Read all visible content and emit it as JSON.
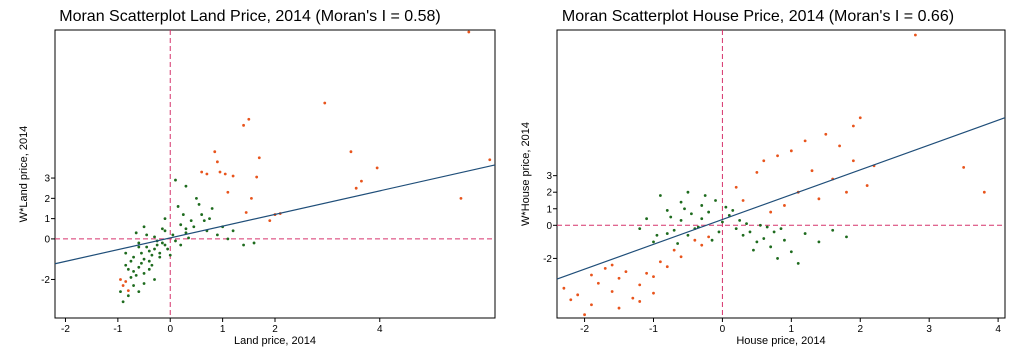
{
  "chart_data": [
    {
      "type": "scatter",
      "title": "Moran Scatterplot Land Price, 2014 (Moran's I = 0.58)",
      "xlabel": "Land price, 2014",
      "ylabel": "W*Land price, 2014",
      "xlim": [
        -2.2,
        6.2
      ],
      "ylim": [
        -3.9,
        10.3
      ],
      "xticks": [
        -2,
        -1,
        0,
        1,
        2,
        4
      ],
      "yticks": [
        3,
        2,
        1,
        0,
        -2
      ],
      "reference_lines": {
        "x": 0,
        "y": 0,
        "color": "#d6336c"
      },
      "fit_line": {
        "slope": 0.58,
        "intercept": 0.05,
        "color": "#1f4e79"
      },
      "grid": false,
      "series": [
        {
          "color": "#e8541c",
          "points": [
            [
              5.7,
              10.2
            ],
            [
              2.95,
              6.7
            ],
            [
              1.5,
              5.9
            ],
            [
              1.4,
              5.6
            ],
            [
              3.45,
              4.3
            ],
            [
              3.95,
              3.5
            ],
            [
              6.1,
              3.9
            ],
            [
              0.85,
              4.3
            ],
            [
              0.9,
              3.8
            ],
            [
              1.7,
              4.0
            ],
            [
              1.05,
              3.2
            ],
            [
              1.2,
              3.1
            ],
            [
              1.65,
              3.05
            ],
            [
              3.65,
              2.85
            ],
            [
              3.55,
              2.5
            ],
            [
              5.55,
              2.0
            ],
            [
              1.55,
              2.0
            ],
            [
              1.45,
              1.3
            ],
            [
              2.0,
              1.2
            ],
            [
              1.9,
              0.9
            ],
            [
              2.1,
              1.25
            ],
            [
              0.95,
              3.3
            ],
            [
              0.7,
              3.2
            ],
            [
              0.6,
              3.3
            ],
            [
              1.1,
              2.3
            ],
            [
              -0.95,
              -2.0
            ],
            [
              -0.9,
              -2.3
            ],
            [
              -0.85,
              -2.1
            ],
            [
              -0.8,
              -2.55
            ]
          ]
        },
        {
          "color": "#1e6b1e",
          "points": [
            [
              -0.5,
              0.6
            ],
            [
              -0.3,
              0.1
            ],
            [
              -0.1,
              0.4
            ],
            [
              0.2,
              0.7
            ],
            [
              0.3,
              0.5
            ],
            [
              -0.6,
              -0.2
            ],
            [
              -0.4,
              -0.6
            ],
            [
              -0.7,
              -0.9
            ],
            [
              -0.55,
              -1.2
            ],
            [
              -0.8,
              -1.5
            ],
            [
              -0.65,
              -1.8
            ],
            [
              -0.45,
              -0.4
            ],
            [
              -0.25,
              -0.1
            ],
            [
              0.05,
              0.2
            ],
            [
              0.4,
              0.9
            ],
            [
              0.6,
              1.2
            ],
            [
              0.8,
              1.5
            ],
            [
              0.5,
              2.0
            ],
            [
              0.3,
              2.6
            ],
            [
              0.1,
              2.9
            ],
            [
              0.55,
              1.7
            ],
            [
              0.7,
              0.4
            ],
            [
              0.9,
              0.2
            ],
            [
              1.1,
              0.0
            ],
            [
              1.4,
              -0.3
            ],
            [
              1.6,
              -0.2
            ],
            [
              -0.05,
              -0.5
            ],
            [
              -0.2,
              -0.9
            ],
            [
              -0.35,
              -1.3
            ],
            [
              -0.75,
              -1.1
            ],
            [
              -0.85,
              -0.7
            ],
            [
              -0.6,
              -0.4
            ],
            [
              -0.5,
              -1.0
            ],
            [
              -0.4,
              -1.5
            ],
            [
              -0.3,
              -2.0
            ],
            [
              -0.7,
              -2.3
            ],
            [
              -0.6,
              -2.6
            ],
            [
              -0.8,
              -2.8
            ],
            [
              -0.9,
              -3.1
            ],
            [
              -0.5,
              -2.2
            ],
            [
              0.0,
              -0.8
            ],
            [
              0.2,
              -0.3
            ],
            [
              0.35,
              0.05
            ],
            [
              0.25,
              1.2
            ],
            [
              0.15,
              1.6
            ],
            [
              -0.1,
              1.0
            ],
            [
              -0.15,
              0.5
            ],
            [
              -0.25,
              -0.3
            ],
            [
              -0.45,
              0.2
            ],
            [
              -0.65,
              0.3
            ],
            [
              -0.55,
              -0.7
            ],
            [
              -0.35,
              -0.8
            ],
            [
              -0.15,
              -0.2
            ],
            [
              0.45,
              0.6
            ],
            [
              0.65,
              0.9
            ],
            [
              0.75,
              1.0
            ],
            [
              1.0,
              0.6
            ],
            [
              1.2,
              0.4
            ],
            [
              -0.75,
              -1.9
            ],
            [
              -0.95,
              -2.6
            ],
            [
              -0.85,
              -1.3
            ],
            [
              -0.7,
              -1.6
            ],
            [
              -0.6,
              -1.4
            ],
            [
              -0.5,
              -1.7
            ],
            [
              -0.4,
              -1.1
            ],
            [
              -0.3,
              -0.5
            ],
            [
              -0.2,
              -0.7
            ],
            [
              -0.1,
              -0.3
            ],
            [
              0.1,
              -0.1
            ],
            [
              0.3,
              0.3
            ]
          ]
        }
      ]
    },
    {
      "type": "scatter",
      "title": "Moran Scatterplot House Price, 2014 (Moran's I = 0.66)",
      "xlabel": "House price, 2014",
      "ylabel": "W*House price, 2014",
      "xlim": [
        -2.4,
        4.1
      ],
      "ylim": [
        -5.6,
        11.8
      ],
      "xticks": [
        -2,
        -1,
        0,
        1,
        2,
        3,
        4
      ],
      "yticks": [
        3,
        2,
        1,
        0,
        -2
      ],
      "reference_lines": {
        "x": 0,
        "y": 0,
        "color": "#d6336c"
      },
      "fit_line": {
        "slope": 1.5,
        "intercept": 0.35,
        "color": "#1f4e79"
      },
      "grid": false,
      "series": [
        {
          "color": "#e8541c",
          "points": [
            [
              2.8,
              11.5
            ],
            [
              3.5,
              3.5
            ],
            [
              3.8,
              2.0
            ],
            [
              2.0,
              6.5
            ],
            [
              1.9,
              6.0
            ],
            [
              1.5,
              5.5
            ],
            [
              1.7,
              4.8
            ],
            [
              1.2,
              5.1
            ],
            [
              1.0,
              4.5
            ],
            [
              0.8,
              4.2
            ],
            [
              0.6,
              3.9
            ],
            [
              0.5,
              3.2
            ],
            [
              1.3,
              3.3
            ],
            [
              1.6,
              2.8
            ],
            [
              2.2,
              3.6
            ],
            [
              2.1,
              2.4
            ],
            [
              1.8,
              2.0
            ],
            [
              1.4,
              1.6
            ],
            [
              0.9,
              1.2
            ],
            [
              0.7,
              0.8
            ],
            [
              1.1,
              2.0
            ],
            [
              0.3,
              1.5
            ],
            [
              0.2,
              2.3
            ],
            [
              1.9,
              3.9
            ],
            [
              -2.3,
              -3.8
            ],
            [
              -2.1,
              -4.2
            ],
            [
              -1.9,
              -4.8
            ],
            [
              -2.0,
              -5.4
            ],
            [
              -1.8,
              -3.5
            ],
            [
              -1.6,
              -4.0
            ],
            [
              -1.5,
              -3.2
            ],
            [
              -1.4,
              -2.8
            ],
            [
              -1.3,
              -4.4
            ],
            [
              -1.2,
              -3.6
            ],
            [
              -1.1,
              -2.9
            ],
            [
              -1.0,
              -3.1
            ],
            [
              -0.9,
              -2.2
            ],
            [
              -0.8,
              -2.5
            ],
            [
              -1.7,
              -2.6
            ],
            [
              -1.6,
              -2.4
            ],
            [
              -1.5,
              -5.0
            ],
            [
              -1.2,
              -4.6
            ],
            [
              -1.0,
              -4.1
            ],
            [
              -0.7,
              -1.5
            ],
            [
              -0.6,
              -1.9
            ],
            [
              -0.4,
              -0.9
            ],
            [
              -0.3,
              -1.2
            ],
            [
              -0.2,
              -0.7
            ],
            [
              -1.9,
              -3.0
            ],
            [
              -2.2,
              -4.5
            ]
          ]
        },
        {
          "color": "#1e6b1e",
          "points": [
            [
              -0.9,
              1.8
            ],
            [
              -0.8,
              0.9
            ],
            [
              -0.6,
              1.4
            ],
            [
              -0.5,
              2.0
            ],
            [
              -0.3,
              1.2
            ],
            [
              -0.2,
              0.8
            ],
            [
              -0.1,
              1.5
            ],
            [
              0.1,
              0.6
            ],
            [
              0.2,
              -0.2
            ],
            [
              0.3,
              -0.6
            ],
            [
              0.4,
              -0.4
            ],
            [
              0.5,
              -1.0
            ],
            [
              0.6,
              -0.8
            ],
            [
              0.7,
              -1.3
            ],
            [
              0.9,
              -0.9
            ],
            [
              1.0,
              -1.6
            ],
            [
              1.2,
              -0.5
            ],
            [
              1.4,
              -1.0
            ],
            [
              1.6,
              -0.3
            ],
            [
              1.8,
              -0.7
            ],
            [
              0.8,
              -2.0
            ],
            [
              1.1,
              -2.3
            ],
            [
              -0.7,
              -0.3
            ],
            [
              -0.5,
              -0.6
            ],
            [
              -0.4,
              -0.2
            ],
            [
              -0.6,
              0.3
            ],
            [
              -0.8,
              -0.5
            ],
            [
              -1.0,
              -1.0
            ],
            [
              -1.1,
              0.4
            ],
            [
              -1.2,
              -0.2
            ],
            [
              -0.3,
              0.4
            ],
            [
              0.0,
              0.2
            ],
            [
              0.15,
              0.9
            ],
            [
              -0.05,
              -0.4
            ],
            [
              0.25,
              0.3
            ],
            [
              0.35,
              0.1
            ],
            [
              -0.15,
              -0.9
            ],
            [
              -0.45,
              0.7
            ],
            [
              -0.65,
              -1.1
            ],
            [
              -0.75,
              0.5
            ],
            [
              -0.95,
              -0.6
            ],
            [
              -0.25,
              1.8
            ],
            [
              0.05,
              1.1
            ],
            [
              0.45,
              -1.5
            ],
            [
              0.55,
              0.0
            ],
            [
              0.65,
              -0.1
            ],
            [
              0.75,
              -0.4
            ],
            [
              0.85,
              -0.2
            ],
            [
              -0.35,
              -0.1
            ],
            [
              -0.55,
              1.0
            ]
          ]
        }
      ]
    }
  ]
}
